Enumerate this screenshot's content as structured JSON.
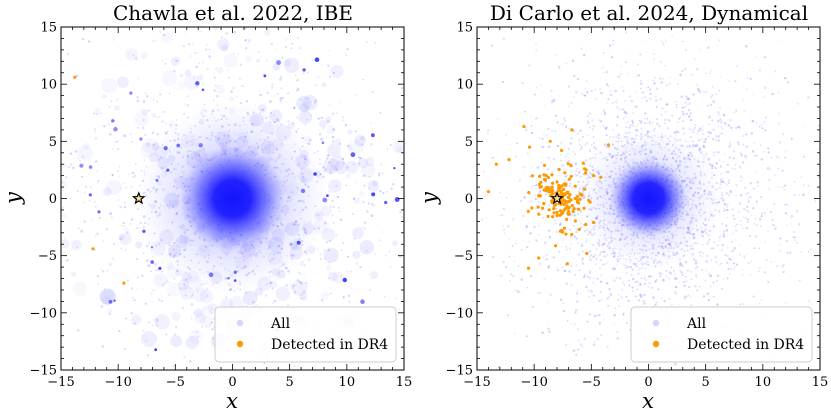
{
  "chart_data": [
    {
      "type": "scatter",
      "title": "Chawla et al. 2022, IBE",
      "xlabel": "x",
      "ylabel": "y",
      "xlim": [
        -15,
        15
      ],
      "ylim": [
        -15,
        15
      ],
      "xticks": [
        -15,
        -10,
        -5,
        0,
        5,
        10,
        15
      ],
      "yticks": [
        -15,
        -10,
        -5,
        0,
        5,
        10,
        15
      ],
      "xtick_labels": [
        "−15",
        "−10",
        "−5",
        "0",
        "5",
        "10",
        "15"
      ],
      "ytick_labels": [
        "−15",
        "−10",
        "−5",
        "0",
        "5",
        "10",
        "15"
      ],
      "legend_position": "lower-right",
      "legend": [
        "All",
        "Detected in DR4"
      ],
      "series": [
        {
          "name": "All",
          "color": "#1f1fff",
          "distribution": "clumpy disk, dense core at (0,0)"
        },
        {
          "name": "Detected in DR4",
          "color": "#ff9900",
          "points": [
            [
              -12.2,
              -4.4
            ],
            [
              -9.5,
              -7.4
            ],
            [
              -13.8,
              10.6
            ]
          ]
        },
        {
          "name": "Sun",
          "marker": "star",
          "points": [
            [
              -8.2,
              0.0
            ]
          ]
        }
      ]
    },
    {
      "type": "scatter",
      "title": "Di Carlo et al. 2024, Dynamical",
      "xlabel": "x",
      "ylabel": "y",
      "xlim": [
        -15,
        15
      ],
      "ylim": [
        -15,
        15
      ],
      "xticks": [
        -15,
        -10,
        -5,
        0,
        5,
        10,
        15
      ],
      "yticks": [
        -15,
        -10,
        -5,
        0,
        5,
        10,
        15
      ],
      "xtick_labels": [
        "−15",
        "−10",
        "−5",
        "0",
        "5",
        "10",
        "15"
      ],
      "ytick_labels": [
        "−15",
        "−10",
        "−5",
        "0",
        "5",
        "10",
        "15"
      ],
      "legend_position": "lower-right",
      "legend": [
        "All",
        "Detected in DR4"
      ],
      "series": [
        {
          "name": "All",
          "color": "#1f1fff",
          "distribution": "smooth disk, dense core at (0,0)"
        },
        {
          "name": "Detected in DR4",
          "color": "#ff9900",
          "points": [
            [
              -10.9,
              6.3
            ],
            [
              -10.4,
              4.5
            ],
            [
              -12.2,
              3.4
            ],
            [
              -13.3,
              3.0
            ],
            [
              -14.0,
              0.6
            ],
            [
              -6.7,
              6.0
            ],
            [
              -3.5,
              4.7
            ],
            [
              -5.7,
              3.1
            ],
            [
              -5.6,
              2.6
            ],
            [
              -4.8,
              2.0
            ],
            [
              -9.6,
              -5.2
            ],
            [
              -10.5,
              -6.1
            ],
            [
              -7.1,
              -5.7
            ],
            [
              -5.4,
              -4.8
            ],
            [
              -4.8,
              -2.1
            ],
            [
              -7.6,
              4.2
            ],
            [
              -8.6,
              5.0
            ],
            [
              -9.1,
              2.9
            ]
          ]
        },
        {
          "name": "Sun",
          "marker": "star",
          "points": [
            [
              -8.0,
              0.0
            ]
          ]
        }
      ]
    }
  ]
}
